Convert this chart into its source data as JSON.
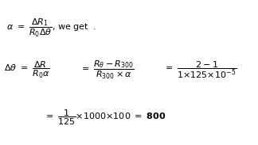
{
  "bg_color": "#ffffff",
  "line1": "$\\alpha \\ = \\ \\dfrac{\\Delta R_1}{R_0 \\Delta\\theta}$, we get  .",
  "line2_lhs": "$\\Delta\\theta \\ = \\ \\dfrac{\\Delta R}{R_0\\alpha}$",
  "line2_mid": "$= \\ \\dfrac{R_\\theta - R_{300}}{R_{300} \\times \\alpha}$",
  "line2_rhs": "$= \\ \\dfrac{2 - 1}{1{\\times}125{\\times}10^{-5}}$",
  "line3": "$= \\ \\dfrac{1}{125}{\\times}1000{\\times}100 \\ = \\ \\mathbf{800}$",
  "fontsize": 8.0,
  "fig_width": 3.24,
  "fig_height": 1.83,
  "dpi": 100
}
